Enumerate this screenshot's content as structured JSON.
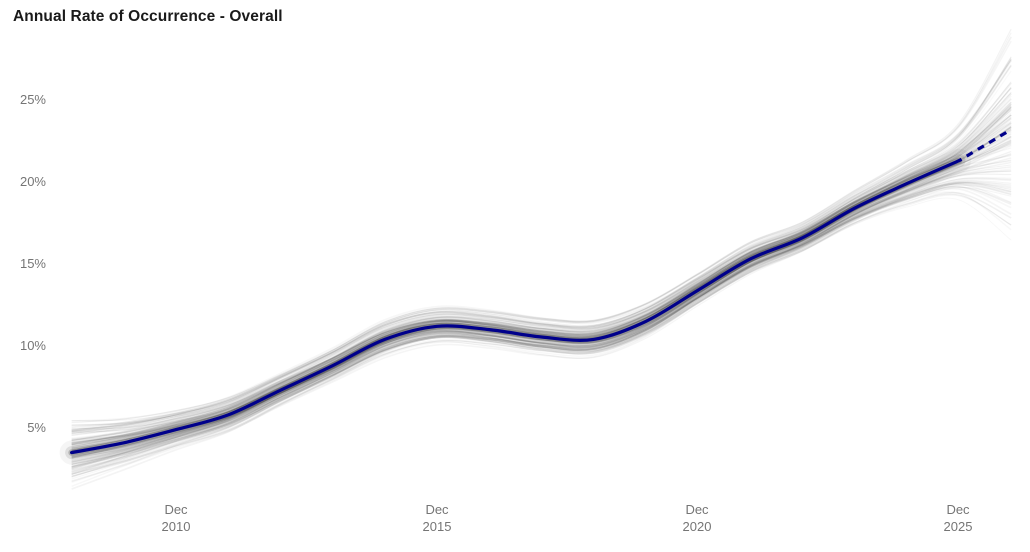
{
  "chart_data": {
    "type": "line",
    "title": "Annual Rate of Occurrence - Overall",
    "x_axis": {
      "tick_labels": [
        {
          "line1": "Dec",
          "line2": "2010"
        },
        {
          "line1": "Dec",
          "line2": "2015"
        },
        {
          "line1": "Dec",
          "line2": "2020"
        },
        {
          "line1": "Dec",
          "line2": "2025"
        }
      ],
      "range": [
        "Dec 2008",
        "Dec 2026"
      ]
    },
    "y_axis": {
      "tick_labels": [
        "25%",
        "20%",
        "15%",
        "10%",
        "5%"
      ],
      "unit": "%",
      "visible_tick_range_pct": [
        5,
        25
      ]
    },
    "series": [
      {
        "name": "observed-median",
        "style": "solid",
        "points": [
          {
            "date": "Dec 2008",
            "pct": 3.5
          },
          {
            "date": "Dec 2009",
            "pct": 4.1
          },
          {
            "date": "Dec 2010",
            "pct": 4.9
          },
          {
            "date": "Dec 2011",
            "pct": 5.8
          },
          {
            "date": "Dec 2012",
            "pct": 7.3
          },
          {
            "date": "Dec 2013",
            "pct": 8.8
          },
          {
            "date": "Dec 2014",
            "pct": 10.4
          },
          {
            "date": "Dec 2015",
            "pct": 11.2
          },
          {
            "date": "Dec 2016",
            "pct": 11.0
          },
          {
            "date": "Dec 2017",
            "pct": 10.55
          },
          {
            "date": "Dec 2018",
            "pct": 10.4
          },
          {
            "date": "Dec 2019",
            "pct": 11.5
          },
          {
            "date": "Dec 2020",
            "pct": 13.4
          },
          {
            "date": "Dec 2021",
            "pct": 15.3
          },
          {
            "date": "Dec 2022",
            "pct": 16.6
          },
          {
            "date": "Dec 2023",
            "pct": 18.4
          },
          {
            "date": "Dec 2024",
            "pct": 19.9
          },
          {
            "date": "Dec 2025",
            "pct": 21.3
          }
        ]
      },
      {
        "name": "forecast-median",
        "style": "dashed",
        "points": [
          {
            "date": "Dec 2025",
            "pct": 21.3
          },
          {
            "date": "Dec 2026",
            "pct": 23.2
          }
        ]
      }
    ],
    "uncertainty_fan": {
      "kind": "posterior-draw-spaghetti",
      "years": [
        2008,
        2009,
        2010,
        2011,
        2012,
        2013,
        2014,
        2015,
        2016,
        2017,
        2018,
        2019,
        2020,
        2021,
        2022,
        2023,
        2024,
        2025,
        2026
      ],
      "half_width_pct": [
        1.0,
        0.8,
        0.65,
        0.6,
        0.55,
        0.55,
        0.6,
        0.6,
        0.6,
        0.6,
        0.6,
        0.55,
        0.5,
        0.5,
        0.45,
        0.5,
        0.65,
        1.0,
        2.6
      ]
    },
    "colors": {
      "median_line": "#00008B",
      "fan": "#000000",
      "axis_text": "#757575",
      "title_text": "#1a1a1a",
      "background": "#ffffff"
    },
    "grid": false,
    "legend": null
  }
}
